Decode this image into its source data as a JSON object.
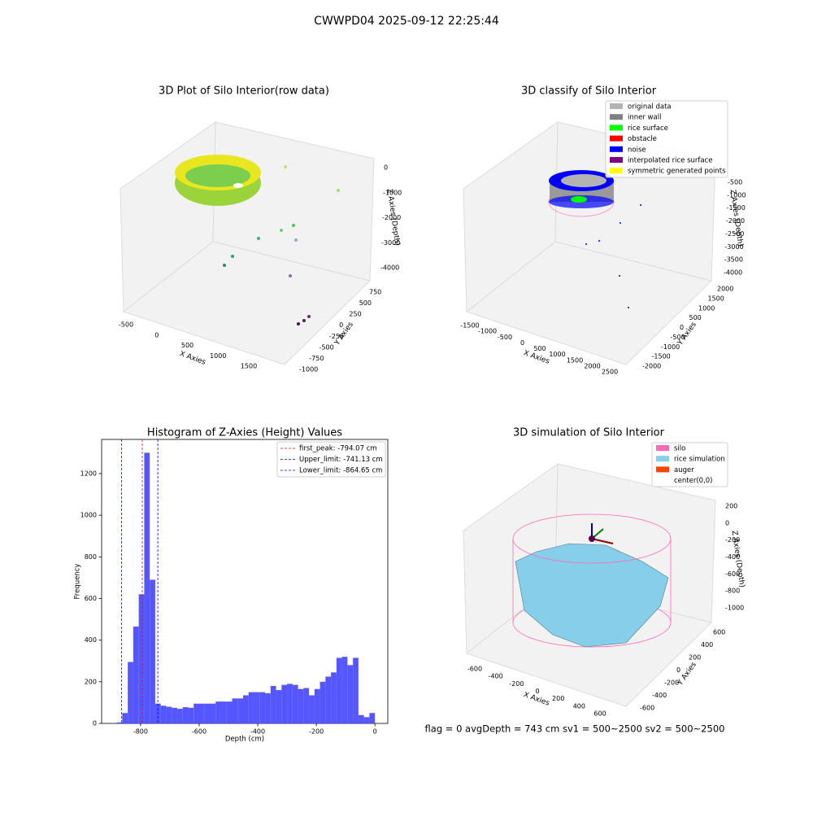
{
  "figure_title": "CWWPD04 2025-09-12 22:25:44",
  "footer": "flag = 0     avgDepth = 743 cm  sv1 = 500~2500  sv2 = 500~2500",
  "chart_data": [
    {
      "type": "scatter3d",
      "title": "3D Plot of Silo Interior(row data)",
      "xlabel": "X Axies",
      "ylabel": "Y Axies",
      "zlabel": "Z Axies (Depth)",
      "xticks": [
        -500,
        0,
        500,
        1000,
        1500
      ],
      "yticks": [
        -1000,
        -750,
        -500,
        -250,
        0,
        250,
        500,
        750
      ],
      "zticks": [
        0,
        -1000,
        -2000,
        -3000,
        -4000
      ]
    },
    {
      "type": "scatter3d",
      "title": "3D classify of Silo Interior",
      "xlabel": "X Axies",
      "ylabel": "Y Axies",
      "zlabel": "Z Axies (Depth)",
      "xticks": [
        -1500,
        -1000,
        -500,
        0,
        500,
        1000,
        1500,
        2000,
        2500
      ],
      "yticks": [
        -2000,
        -1500,
        -1000,
        -500,
        0,
        500,
        1000,
        1500,
        2000
      ],
      "zticks": [
        -500,
        -1000,
        -1500,
        -2000,
        -2500,
        -3000,
        -3500,
        -4000
      ],
      "legend": [
        {
          "name": "original data",
          "color": "#b3b3b3"
        },
        {
          "name": "inner wall",
          "color": "#808080"
        },
        {
          "name": "rice surface",
          "color": "#00ff00"
        },
        {
          "name": "obstacle",
          "color": "#ff0000"
        },
        {
          "name": "noise",
          "color": "#0000ff"
        },
        {
          "name": "interpolated rice surface",
          "color": "#800080"
        },
        {
          "name": "symmetric generated points",
          "color": "#ffff00"
        }
      ]
    },
    {
      "type": "histogram",
      "title": "Histogram of Z-Axies (Height) Values",
      "xlabel": "Depth (cm)",
      "ylabel": "Frequency",
      "color": "#4d4dff",
      "bins": [
        -881.25,
        -862.5,
        -843.75,
        -825,
        -806.25,
        -787.5,
        -768.75,
        -750,
        -731.25,
        -712.5,
        -693.75,
        -675,
        -656.25,
        -637.5,
        -618.75,
        -600,
        -581.25,
        -562.5,
        -543.75,
        -525,
        -506.25,
        -487.5,
        -468.75,
        -450,
        -431.25,
        -412.5,
        -393.75,
        -375,
        -356.25,
        -337.5,
        -318.75,
        -300,
        -281.25,
        -262.5,
        -243.75,
        -225,
        -206.25,
        -187.5,
        -168.75,
        -150,
        -131.25,
        -112.5,
        -93.75,
        -75,
        -56.25,
        -37.5,
        -18.75,
        0
      ],
      "values": [
        5,
        50,
        295,
        465,
        620,
        1300,
        690,
        95,
        85,
        80,
        75,
        70,
        78,
        75,
        95,
        95,
        95,
        95,
        105,
        105,
        105,
        120,
        120,
        135,
        150,
        150,
        150,
        145,
        180,
        160,
        185,
        190,
        185,
        165,
        170,
        135,
        165,
        200,
        225,
        245,
        315,
        320,
        280,
        315,
        40,
        30,
        50
      ],
      "xlim": [
        -933,
        44
      ],
      "ylim": [
        0,
        1364
      ],
      "xticks": [
        -800,
        -600,
        -400,
        -200,
        0
      ],
      "yticks": [
        0,
        200,
        400,
        600,
        800,
        1000,
        1200
      ],
      "vlines": [
        {
          "name": "first_peak: -794.07 cm",
          "value": -794.07,
          "color": "#ff0000"
        },
        {
          "name": "Upper_limit: -741.13 cm",
          "value": -741.13,
          "color": "#0000ff"
        },
        {
          "name": "Lower_limit: -864.65 cm",
          "value": -864.65,
          "color": "#0000ff"
        }
      ]
    },
    {
      "type": "surface3d",
      "title": "3D simulation of Silo Interior",
      "xlabel": "X Axies",
      "ylabel": "Y Axies",
      "zlabel": "Z Axies (Depth)",
      "xticks": [
        -600,
        -400,
        -200,
        0,
        200,
        400,
        600
      ],
      "yticks": [
        -600,
        -400,
        -200,
        0,
        200,
        400,
        600
      ],
      "zticks": [
        200,
        0,
        -200,
        -400,
        -600,
        -800,
        -1000
      ],
      "legend": [
        {
          "name": "silo",
          "color": "#ff69b4"
        },
        {
          "name": "rice simulation",
          "color": "#87ceeb"
        },
        {
          "name": "auger",
          "color": "#ff4500"
        },
        {
          "name": "center(0,0)",
          "color": "#ffffff"
        }
      ]
    }
  ]
}
